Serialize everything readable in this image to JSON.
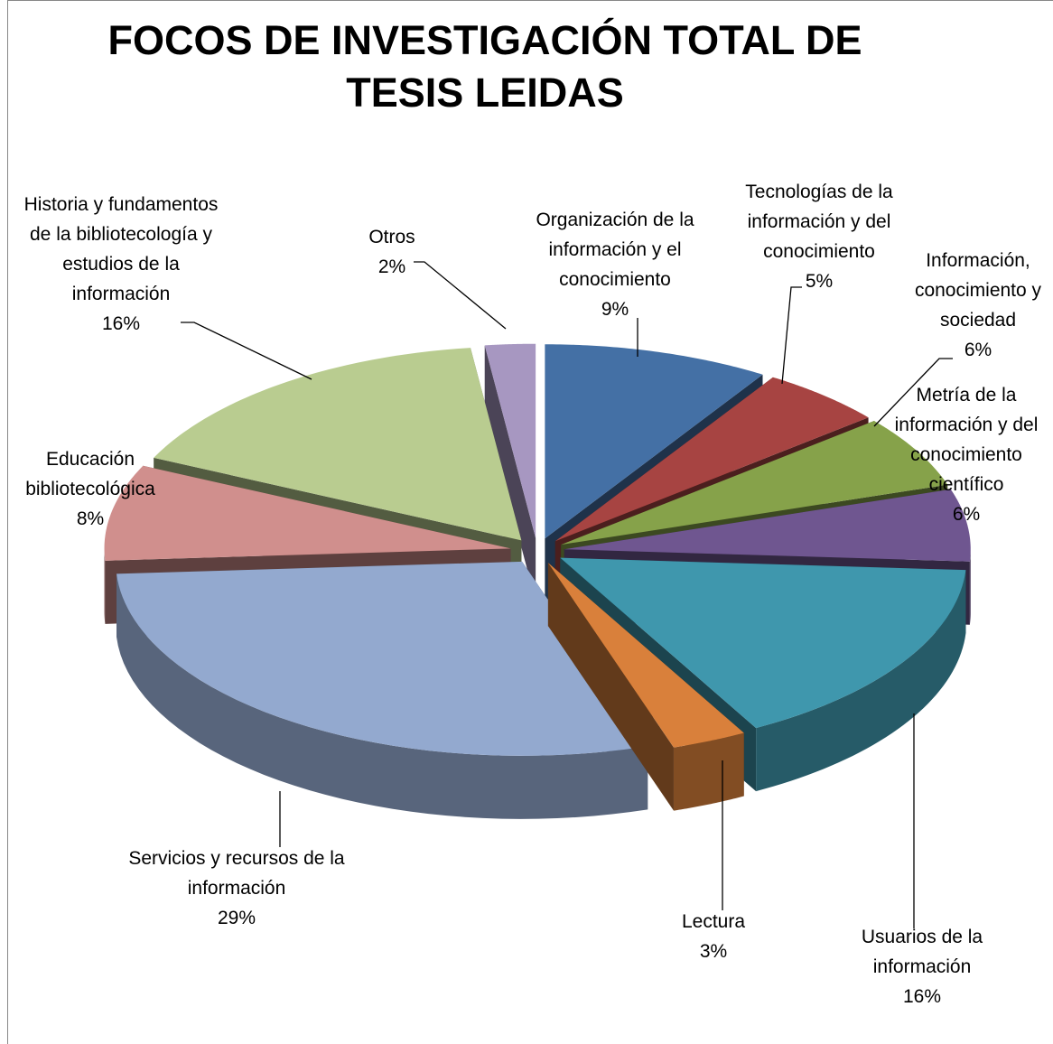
{
  "chart_data": {
    "type": "pie3d",
    "title": "FOCOS DE INVESTIGACIÓN TOTAL DE TESIS LEIDAS",
    "categories": [
      "Organización de la información y el conocimiento",
      "Tecnologías de la información y del conocimiento",
      "Información, conocimiento y sociedad",
      "Metría de la información y del conocimiento científico",
      "Usuarios de la información",
      "Lectura",
      "Servicios y recursos de la información",
      "Educación bibliotecológica",
      "Historia y fundamentos de la bibliotecología y estudios de la información",
      "Otros"
    ],
    "values": [
      9,
      5,
      6,
      6,
      16,
      3,
      29,
      8,
      16,
      2
    ],
    "value_labels": [
      "9%",
      "5%",
      "6%",
      "6%",
      "16%",
      "3%",
      "29%",
      "8%",
      "16%",
      "2%"
    ],
    "colors": [
      "#4470a5",
      "#a74442",
      "#86a24a",
      "#6f5690",
      "#3f97ad",
      "#d9803b",
      "#93a9cf",
      "#d08f8d",
      "#b9cc90",
      "#a797c1"
    ]
  }
}
